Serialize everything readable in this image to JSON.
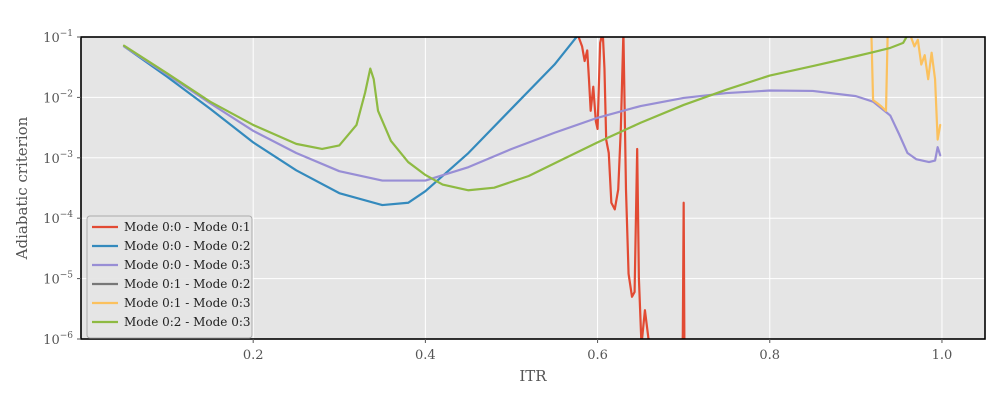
{
  "chart_data": {
    "type": "line",
    "title": "",
    "xlabel": "ITR",
    "ylabel": "Adiabatic criterion",
    "yscale": "log",
    "xlim": [
      0.0,
      1.05
    ],
    "ylim": [
      1e-06,
      0.1
    ],
    "grid": true,
    "legend_position": "lower-left",
    "x_ticks": [
      0.2,
      0.4,
      0.6,
      0.8,
      1.0
    ],
    "x_tick_labels": [
      "0.2",
      "0.4",
      "0.6",
      "0.8",
      "1.0"
    ],
    "y_ticks": [
      1e-06,
      1e-05,
      0.0001,
      0.001,
      0.01,
      0.1
    ],
    "y_tick_labels": [
      {
        "base": "10",
        "exp": "−6"
      },
      {
        "base": "10",
        "exp": "−5"
      },
      {
        "base": "10",
        "exp": "−4"
      },
      {
        "base": "10",
        "exp": "−3"
      },
      {
        "base": "10",
        "exp": "−2"
      },
      {
        "base": "10",
        "exp": "−1"
      }
    ],
    "series": [
      {
        "name": "Mode 0:0 - Mode 0:1",
        "color": "#E24A33",
        "points": [
          [
            0.575,
            0.12
          ],
          [
            0.578,
            0.1
          ],
          [
            0.582,
            0.07
          ],
          [
            0.585,
            0.04
          ],
          [
            0.588,
            0.06
          ],
          [
            0.59,
            0.02
          ],
          [
            0.592,
            0.006
          ],
          [
            0.595,
            0.015
          ],
          [
            0.598,
            0.004
          ],
          [
            0.6,
            0.003
          ],
          [
            0.603,
            0.08
          ],
          [
            0.606,
            0.12
          ],
          [
            0.608,
            0.03
          ],
          [
            0.61,
            0.002
          ],
          [
            0.613,
            0.0012
          ],
          [
            0.616,
            0.00018
          ],
          [
            0.62,
            0.00014
          ],
          [
            0.624,
            0.0003
          ],
          [
            0.627,
            0.003
          ],
          [
            0.63,
            0.12
          ],
          [
            0.633,
            0.0003
          ],
          [
            0.636,
            1.2e-05
          ],
          [
            0.64,
            5e-06
          ],
          [
            0.643,
            6e-06
          ],
          [
            0.646,
            0.0014
          ],
          [
            0.648,
            1e-05
          ],
          [
            0.651,
            8e-07
          ],
          [
            0.655,
            3e-06
          ],
          [
            0.66,
            8e-07
          ],
          [
            0.665,
            4e-07
          ]
        ]
      },
      {
        "name": "Mode 0:0 - Mode 0:1",
        "color": "#E24A33",
        "points": [
          [
            0.698,
            3e-07
          ],
          [
            0.699,
            1.2e-06
          ],
          [
            0.7,
            0.00018
          ],
          [
            0.701,
            3e-07
          ]
        ]
      },
      {
        "name": "Mode 0:0 - Mode 0:2",
        "color": "#348ABD",
        "points": [
          [
            0.05,
            0.07
          ],
          [
            0.1,
            0.022
          ],
          [
            0.15,
            0.0065
          ],
          [
            0.2,
            0.0018
          ],
          [
            0.25,
            0.00062
          ],
          [
            0.3,
            0.00026
          ],
          [
            0.35,
            0.000165
          ],
          [
            0.38,
            0.00018
          ],
          [
            0.4,
            0.00028
          ],
          [
            0.45,
            0.0012
          ],
          [
            0.5,
            0.0065
          ],
          [
            0.55,
            0.035
          ],
          [
            0.58,
            0.12
          ]
        ]
      },
      {
        "name": "Mode 0:0 - Mode 0:3",
        "color": "#988ED5",
        "points": [
          [
            0.05,
            0.07
          ],
          [
            0.1,
            0.024
          ],
          [
            0.15,
            0.008
          ],
          [
            0.2,
            0.0028
          ],
          [
            0.25,
            0.0012
          ],
          [
            0.3,
            0.0006
          ],
          [
            0.35,
            0.00042
          ],
          [
            0.4,
            0.00042
          ],
          [
            0.45,
            0.0007
          ],
          [
            0.5,
            0.0014
          ],
          [
            0.55,
            0.0026
          ],
          [
            0.6,
            0.0046
          ],
          [
            0.65,
            0.0072
          ],
          [
            0.7,
            0.0098
          ],
          [
            0.75,
            0.0118
          ],
          [
            0.8,
            0.013
          ],
          [
            0.85,
            0.0128
          ],
          [
            0.9,
            0.0105
          ],
          [
            0.92,
            0.0085
          ],
          [
            0.94,
            0.005
          ],
          [
            0.95,
            0.0025
          ],
          [
            0.96,
            0.0012
          ],
          [
            0.97,
            0.00095
          ],
          [
            0.985,
            0.00085
          ],
          [
            0.992,
            0.0009
          ],
          [
            0.995,
            0.0015
          ],
          [
            0.998,
            0.0011
          ]
        ]
      },
      {
        "name": "Mode 0:1 - Mode 0:2",
        "color": "#777777",
        "points": []
      },
      {
        "name": "Mode 0:1 - Mode 0:3",
        "color": "#FBC15E",
        "points": [
          [
            0.918,
            0.12
          ],
          [
            0.92,
            0.009
          ],
          [
            0.925,
            0.008
          ],
          [
            0.93,
            0.007
          ],
          [
            0.935,
            0.006
          ],
          [
            0.937,
            0.12
          ]
        ]
      },
      {
        "name": "Mode 0:1 - Mode 0:3",
        "color": "#FBC15E",
        "points": [
          [
            0.962,
            0.12
          ],
          [
            0.968,
            0.07
          ],
          [
            0.972,
            0.09
          ],
          [
            0.976,
            0.035
          ],
          [
            0.98,
            0.05
          ],
          [
            0.984,
            0.02
          ],
          [
            0.988,
            0.055
          ],
          [
            0.992,
            0.02
          ],
          [
            0.995,
            0.002
          ],
          [
            0.998,
            0.0035
          ]
        ]
      },
      {
        "name": "Mode 0:2 - Mode 0:3",
        "color": "#8EBA42",
        "points": [
          [
            0.05,
            0.072
          ],
          [
            0.1,
            0.025
          ],
          [
            0.15,
            0.0085
          ],
          [
            0.2,
            0.0035
          ],
          [
            0.25,
            0.0017
          ],
          [
            0.28,
            0.0014
          ],
          [
            0.3,
            0.0016
          ],
          [
            0.32,
            0.0035
          ],
          [
            0.33,
            0.012
          ],
          [
            0.336,
            0.03
          ],
          [
            0.34,
            0.02
          ],
          [
            0.345,
            0.006
          ],
          [
            0.36,
            0.0019
          ],
          [
            0.38,
            0.00085
          ],
          [
            0.4,
            0.00052
          ],
          [
            0.42,
            0.00036
          ],
          [
            0.45,
            0.00029
          ],
          [
            0.48,
            0.00032
          ],
          [
            0.52,
            0.0005
          ],
          [
            0.56,
            0.00095
          ],
          [
            0.6,
            0.0018
          ],
          [
            0.65,
            0.0038
          ],
          [
            0.7,
            0.0075
          ],
          [
            0.75,
            0.0135
          ],
          [
            0.8,
            0.023
          ],
          [
            0.85,
            0.033
          ],
          [
            0.9,
            0.048
          ],
          [
            0.92,
            0.056
          ],
          [
            0.94,
            0.066
          ],
          [
            0.955,
            0.08
          ],
          [
            0.962,
            0.12
          ]
        ]
      }
    ],
    "legend": [
      {
        "label": "Mode 0:0 - Mode 0:1",
        "color": "#E24A33"
      },
      {
        "label": "Mode 0:0 - Mode 0:2",
        "color": "#348ABD"
      },
      {
        "label": "Mode 0:0 - Mode 0:3",
        "color": "#988ED5"
      },
      {
        "label": "Mode 0:1 - Mode 0:2",
        "color": "#777777"
      },
      {
        "label": "Mode 0:1 - Mode 0:3",
        "color": "#FBC15E"
      },
      {
        "label": "Mode 0:2 - Mode 0:3",
        "color": "#8EBA42"
      }
    ],
    "colors": {
      "plot_background": "#E5E5E5",
      "grid": "#FFFFFF",
      "frame": "#000000"
    }
  }
}
